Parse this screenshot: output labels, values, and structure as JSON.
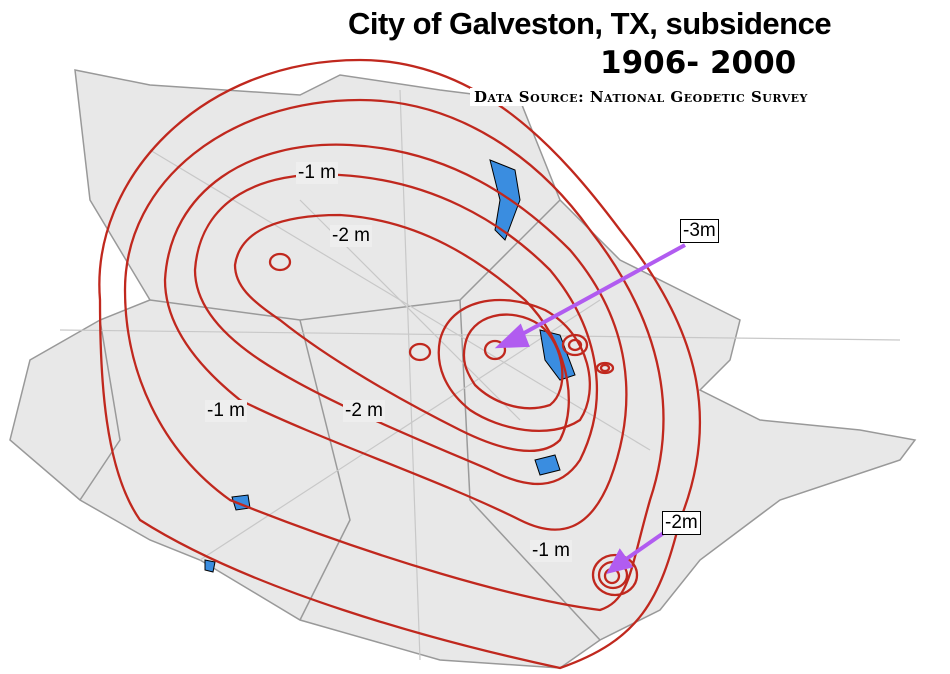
{
  "title": "City of Galveston, TX, subsidence",
  "years": "1906- 2000",
  "source": "Data Source: National Geodetic Survey",
  "contour_labels": [
    "-1 m",
    "-2 m",
    "-1 m",
    "-2 m",
    "-1 m"
  ],
  "callouts": [
    "-3m",
    "-2m"
  ],
  "colors": {
    "contour": "#c0281e",
    "land": "#e8e8e8",
    "water": "#3a8de0",
    "arrow": "#b15cf0",
    "roads": "#c8c8c8"
  }
}
